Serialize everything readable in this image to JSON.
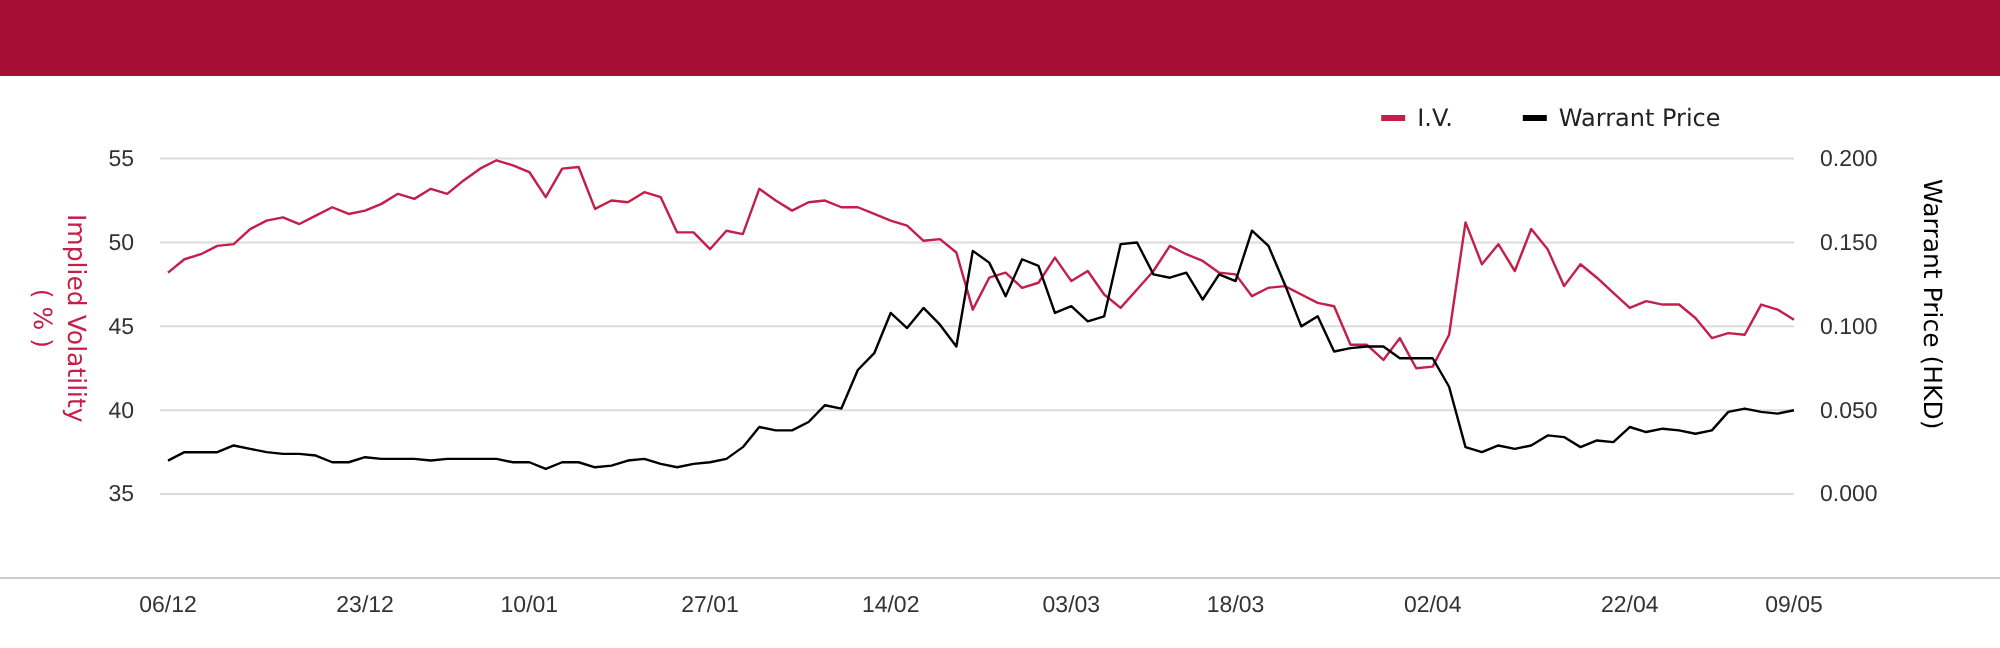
{
  "chart_data": {
    "type": "line",
    "ylabel": "Implied Volatility\n( % )",
    "y2label": "Warrant Price (HKD)",
    "categories": [
      "06/12",
      null,
      null,
      null,
      null,
      null,
      null,
      null,
      null,
      null,
      null,
      null,
      "23/12",
      null,
      null,
      null,
      null,
      null,
      null,
      null,
      null,
      null,
      "10/01",
      null,
      null,
      null,
      null,
      null,
      null,
      null,
      null,
      null,
      null,
      "27/01",
      null,
      null,
      null,
      null,
      null,
      null,
      null,
      null,
      null,
      null,
      "14/02",
      null,
      null,
      null,
      null,
      null,
      null,
      null,
      null,
      null,
      null,
      "03/03",
      null,
      null,
      null,
      null,
      null,
      null,
      null,
      null,
      null,
      "18/03",
      null,
      null,
      null,
      null,
      null,
      null,
      null,
      null,
      null,
      null,
      null,
      "02/04",
      null,
      null,
      null,
      null,
      null,
      null,
      null,
      null,
      null,
      null,
      null,
      "22/04",
      null,
      null,
      null,
      null,
      null,
      null,
      null,
      null,
      null,
      "09/05"
    ],
    "series": [
      {
        "name": "I.V.",
        "color": "#c41e4a",
        "values": [
          48.2,
          49.0,
          49.3,
          49.8,
          49.9,
          50.8,
          51.3,
          51.5,
          51.1,
          51.6,
          52.1,
          51.7,
          51.9,
          52.3,
          52.9,
          52.6,
          53.2,
          52.9,
          53.7,
          54.4,
          54.9,
          54.6,
          54.2,
          52.7,
          54.4,
          54.5,
          52.0,
          52.5,
          52.4,
          53.0,
          52.7,
          50.6,
          50.6,
          49.6,
          50.7,
          50.5,
          53.2,
          52.5,
          51.9,
          52.4,
          52.5,
          52.1,
          52.1,
          51.7,
          51.3,
          51.0,
          50.1,
          50.2,
          49.4,
          46.0,
          47.9,
          48.2,
          47.3,
          47.6,
          49.1,
          47.7,
          48.3,
          46.9,
          46.1,
          47.2,
          48.3,
          49.8,
          49.3,
          48.9,
          48.2,
          48.1,
          46.8,
          47.3,
          47.4,
          46.9,
          46.4,
          46.2,
          43.9,
          43.9,
          43.0,
          44.3,
          42.5,
          42.6,
          44.5,
          51.2,
          48.7,
          49.9,
          48.3,
          50.8,
          49.6,
          47.4,
          48.7,
          47.9,
          47.0,
          46.1,
          46.5,
          46.3,
          46.3,
          45.5,
          44.3,
          44.6,
          44.5,
          46.3,
          46.0,
          45.4
        ]
      },
      {
        "name": "Warrant Price",
        "color": "#000000",
        "axis": "y2",
        "values": [
          0.02,
          0.025,
          0.025,
          0.025,
          0.029,
          0.027,
          0.025,
          0.024,
          0.024,
          0.023,
          0.019,
          0.019,
          0.022,
          0.021,
          0.021,
          0.021,
          0.02,
          0.021,
          0.021,
          0.021,
          0.021,
          0.019,
          0.019,
          0.015,
          0.019,
          0.019,
          0.016,
          0.017,
          0.02,
          0.021,
          0.018,
          0.016,
          0.018,
          0.019,
          0.021,
          0.028,
          0.04,
          0.038,
          0.038,
          0.043,
          0.053,
          0.051,
          0.074,
          0.084,
          0.108,
          0.099,
          0.111,
          0.101,
          0.088,
          0.145,
          0.138,
          0.118,
          0.14,
          0.136,
          0.108,
          0.112,
          0.103,
          0.106,
          0.149,
          0.15,
          0.131,
          0.129,
          0.132,
          0.116,
          0.131,
          0.127,
          0.157,
          0.148,
          0.125,
          0.1,
          0.106,
          0.085,
          0.087,
          0.088,
          0.088,
          0.081,
          0.081,
          0.081,
          0.064,
          0.028,
          0.025,
          0.029,
          0.027,
          0.029,
          0.035,
          0.034,
          0.028,
          0.032,
          0.031,
          0.04,
          0.037,
          0.039,
          0.038,
          0.036,
          0.038,
          0.049,
          0.051,
          0.049,
          0.048,
          0.05
        ]
      }
    ],
    "ylim": [
      30,
      55
    ],
    "yticks": [
      35,
      40,
      45,
      50,
      55
    ],
    "y2lim": [
      -0.05,
      0.2
    ],
    "y2ticks": [
      {
        "value": 0,
        "label": "0.000"
      },
      {
        "value": 0.05,
        "label": "0.050"
      },
      {
        "value": 0.1,
        "label": "0.100"
      },
      {
        "value": 0.15,
        "label": "0.150"
      },
      {
        "value": 0.2,
        "label": "0.200"
      }
    ],
    "grid": "y",
    "legend": "top right",
    "marker": "none",
    "line_style": "solid"
  }
}
